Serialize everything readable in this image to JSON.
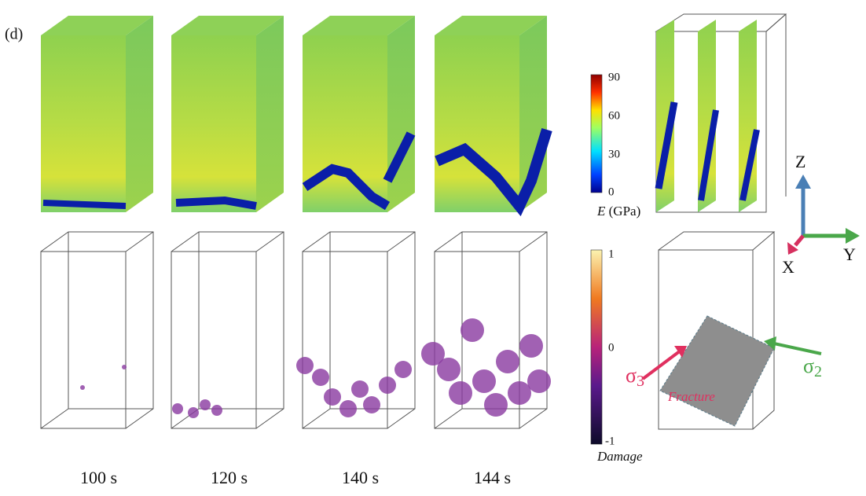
{
  "panel_label": "(d)",
  "modulus_colorbar": {
    "ticks": [
      "90",
      "60",
      "30",
      "0"
    ],
    "label": {
      "symbol": "E",
      "unit": "(GPa)"
    }
  },
  "damage_colorbar": {
    "ticks": [
      "1",
      "0",
      "-1"
    ],
    "label": "Damage"
  },
  "times": [
    "100 s",
    "120 s",
    "140 s",
    "144 s"
  ],
  "axes": {
    "z": "Z",
    "y": "Y",
    "x": "X"
  },
  "stress": {
    "sigma3": {
      "symbol": "σ",
      "subscript": "3"
    },
    "sigma2": {
      "symbol": "σ",
      "subscript": "2"
    }
  },
  "fracture_label": "Fracture"
}
